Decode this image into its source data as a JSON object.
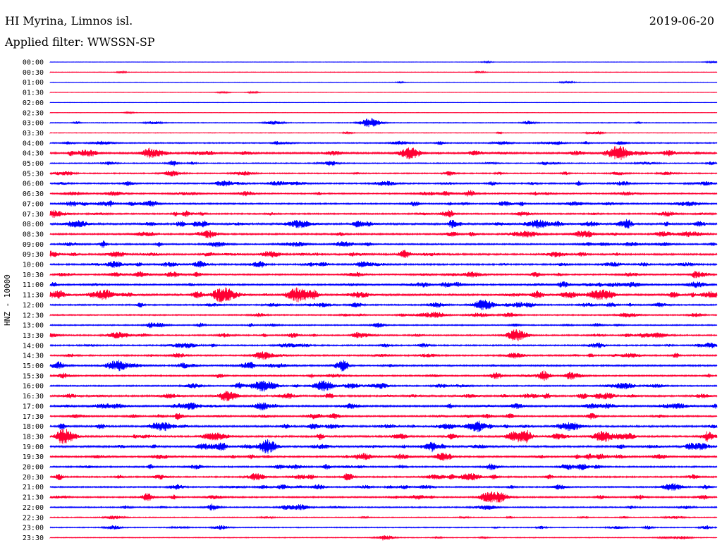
{
  "header": {
    "station": "HI Myrina, Limnos isl.",
    "filter": "Applied filter: WWSSN-SP",
    "date": "2019-06-20"
  },
  "chart_data": {
    "type": "line",
    "ylabel": "HNZ - 10000",
    "colors": [
      "#0000ff",
      "#ff0033"
    ],
    "rows": [
      "00:00",
      "00:30",
      "01:00",
      "01:30",
      "02:00",
      "02:30",
      "03:00",
      "03:30",
      "04:00",
      "04:30",
      "05:00",
      "05:30",
      "06:00",
      "06:30",
      "07:00",
      "07:30",
      "08:00",
      "08:30",
      "09:00",
      "09:30",
      "10:00",
      "10:30",
      "11:00",
      "11:30",
      "12:00",
      "12:30",
      "13:00",
      "13:30",
      "14:00",
      "14:30",
      "15:00",
      "15:30",
      "16:00",
      "16:30",
      "17:00",
      "17:30",
      "18:00",
      "18:30",
      "19:00",
      "19:30",
      "20:00",
      "20:30",
      "21:00",
      "21:30",
      "22:00",
      "22:30",
      "23:00",
      "23:30"
    ],
    "activity": [
      0.06,
      0.06,
      0.06,
      0.05,
      0.02,
      0.04,
      0.18,
      0.12,
      0.28,
      0.5,
      0.28,
      0.32,
      0.38,
      0.38,
      0.42,
      0.4,
      0.58,
      0.45,
      0.4,
      0.5,
      0.48,
      0.42,
      0.45,
      0.6,
      0.4,
      0.32,
      0.32,
      0.38,
      0.38,
      0.42,
      0.45,
      0.4,
      0.38,
      0.52,
      0.5,
      0.42,
      0.52,
      0.55,
      0.55,
      0.45,
      0.42,
      0.42,
      0.38,
      0.4,
      0.32,
      0.22,
      0.25,
      0.18
    ],
    "events": [
      {
        "row": 6,
        "pos": 0.48,
        "amp": 6
      },
      {
        "row": 9,
        "pos": 0.54,
        "amp": 8
      },
      {
        "row": 9,
        "pos": 0.85,
        "amp": 7
      },
      {
        "row": 16,
        "pos": 0.04,
        "amp": 5
      },
      {
        "row": 23,
        "pos": 0.26,
        "amp": 10
      },
      {
        "row": 23,
        "pos": 0.37,
        "amp": 9
      },
      {
        "row": 24,
        "pos": 0.65,
        "amp": 6
      },
      {
        "row": 27,
        "pos": 0.7,
        "amp": 8
      },
      {
        "row": 32,
        "pos": 0.32,
        "amp": 7
      },
      {
        "row": 32,
        "pos": 0.41,
        "amp": 7
      },
      {
        "row": 36,
        "pos": 0.17,
        "amp": 6
      },
      {
        "row": 36,
        "pos": 0.78,
        "amp": 6
      },
      {
        "row": 37,
        "pos": 0.7,
        "amp": 7
      },
      {
        "row": 37,
        "pos": 0.83,
        "amp": 7
      },
      {
        "row": 41,
        "pos": 0.63,
        "amp": 5
      },
      {
        "row": 43,
        "pos": 0.67,
        "amp": 6
      }
    ]
  }
}
